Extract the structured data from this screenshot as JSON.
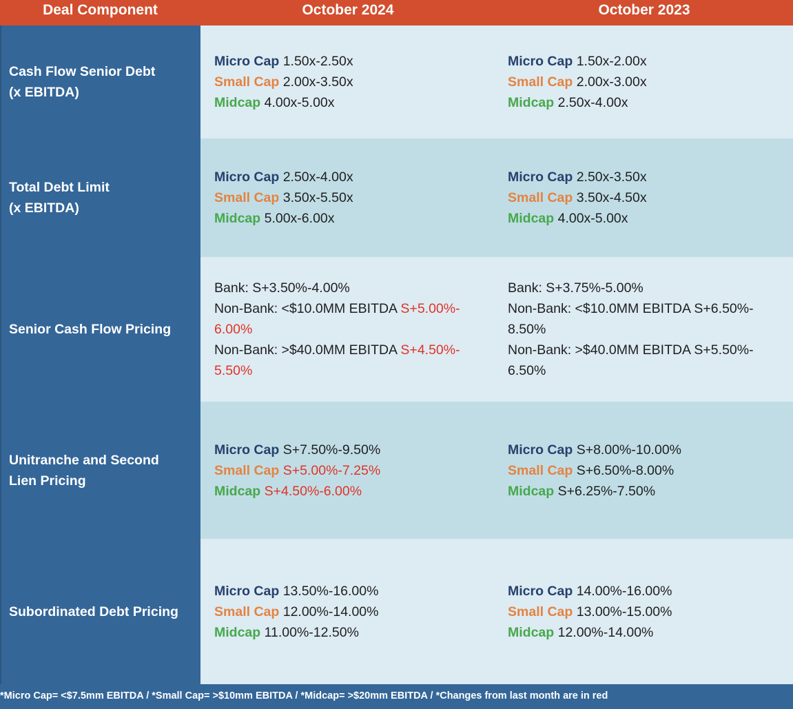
{
  "header": {
    "col1": "Deal Component",
    "col2": "October 2024",
    "col3": "October 2023"
  },
  "tiers": {
    "micro": "Micro Cap",
    "small": "Small Cap",
    "mid": "Midcap"
  },
  "rows": {
    "r1": {
      "label1": "Cash Flow Senior Debt",
      "label2": "(x EBITDA)",
      "oct2024": {
        "micro": "1.50x-2.50x",
        "small": "2.00x-3.50x",
        "mid": "4.00x-5.00x"
      },
      "oct2023": {
        "micro": "1.50x-2.00x",
        "small": "2.00x-3.00x",
        "mid": "2.50x-4.00x"
      }
    },
    "r2": {
      "label1": "Total Debt Limit",
      "label2": "(x EBITDA)",
      "oct2024": {
        "micro": "2.50x-4.00x",
        "small": "3.50x-5.50x",
        "mid": "5.00x-6.00x"
      },
      "oct2023": {
        "micro": "2.50x-3.50x",
        "small": "3.50x-4.50x",
        "mid": "4.00x-5.00x"
      }
    },
    "r3": {
      "label1": "Senior Cash Flow Pricing",
      "oct2024": {
        "l1": "Bank: S+3.50%-4.00%",
        "l2a": "Non-Bank:  <$10.0MM EBITDA ",
        "l2b": "S+5.00%-",
        "l3": "6.00%",
        "l4a": "Non-Bank: >$40.0MM EBITDA ",
        "l4b": "S+4.50%-",
        "l5": "5.50%"
      },
      "oct2023": {
        "l1": "Bank: S+3.75%-5.00%",
        "l2": "Non-Bank: <$10.0MM EBITDA S+6.50%-",
        "l3": "8.50%",
        "l4": "Non-Bank: >$40.0MM EBITDA S+5.50%-",
        "l5": "6.50%"
      }
    },
    "r4": {
      "label1": "Unitranche and Second",
      "label2": "Lien Pricing",
      "oct2024": {
        "micro": "S+7.50%-9.50%",
        "small": "S+5.00%-7.25%",
        "mid": "S+4.50%-6.00%"
      },
      "oct2023": {
        "micro": "S+8.00%-10.00%",
        "small": "S+6.50%-8.00%",
        "mid": "S+6.25%-7.50%"
      }
    },
    "r5": {
      "label1": "Subordinated Debt Pricing",
      "oct2024": {
        "micro": "13.50%-16.00%",
        "small": "12.00%-14.00%",
        "mid": "11.00%-12.50%"
      },
      "oct2023": {
        "micro": "14.00%-16.00%",
        "small": "13.00%-15.00%",
        "mid": "12.00%-14.00%"
      }
    }
  },
  "footer": "*Micro Cap= <$7.5mm EBITDA / *Small Cap= >$10mm EBITDA / *Midcap= >$20mm EBITDA / *Changes from last month are in red",
  "colors": {
    "header_bg": "#d24e2e",
    "sidebar_bg": "#346698",
    "micro": "#27416d",
    "small": "#e4833f",
    "mid": "#47a84c",
    "change": "#e03426"
  }
}
